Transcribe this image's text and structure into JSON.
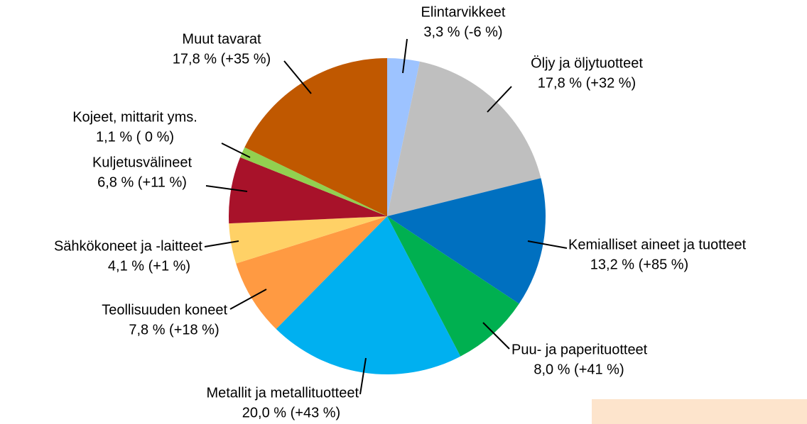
{
  "chart_data": {
    "type": "pie",
    "categories": [
      "Elintarvikkeet",
      "Öljy ja öljytuotteet",
      "Kemialliset aineet ja tuotteet",
      "Puu- ja paperituotteet",
      "Metallit ja metallituotteet",
      "Teollisuuden koneet",
      "Sähkökoneet ja -laitteet",
      "Kuljetusvälineet",
      "Kojeet, mittarit yms.",
      "Muut tavarat"
    ],
    "values": [
      3.3,
      17.8,
      13.2,
      8.0,
      20.0,
      7.8,
      4.1,
      6.8,
      1.1,
      17.8
    ],
    "value_labels": [
      "3,3 % (-6 %)",
      "17,8 % (+32 %)",
      "13,2 % (+85 %)",
      "8,0 % (+41 %)",
      "20,0 % (+43 %)",
      "7,8 % (+18 %)",
      "4,1 % (+1 %)",
      "6,8 % (+11 %)",
      "1,1 % ( 0 %)",
      "17,8 % (+35 %)"
    ],
    "colors": [
      "#9dc3ff",
      "#bfbfbf",
      "#0070c0",
      "#00b050",
      "#00b0f0",
      "#ff9a42",
      "#ffd166",
      "#a8122a",
      "#92d050",
      "#c05800"
    ]
  }
}
